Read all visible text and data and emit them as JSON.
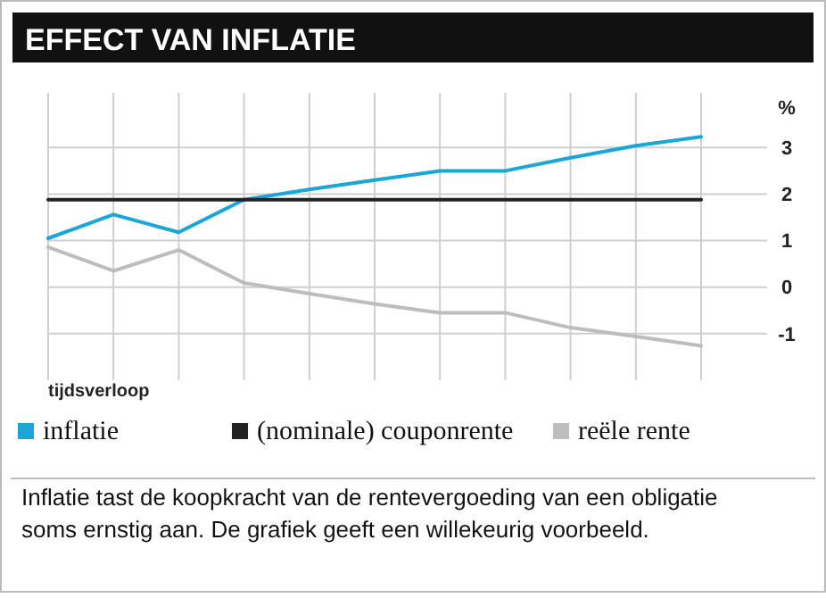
{
  "chart_data": {
    "type": "line",
    "title": "EFFECT VAN INFLATIE",
    "xlabel": "tijdsverloop",
    "ylabel": "%",
    "categories": [
      null,
      null,
      null,
      null,
      null,
      null,
      null,
      null,
      null,
      null,
      null
    ],
    "series": [
      {
        "name": "inflatie",
        "color": "#1aa7d8",
        "values": [
          1.05,
          1.56,
          1.18,
          1.88,
          2.1,
          2.3,
          2.5,
          2.5,
          2.78,
          3.04,
          3.23
        ]
      },
      {
        "name": "(nominale) couponrente",
        "color": "#222222",
        "values": [
          1.88,
          1.88,
          1.88,
          1.88,
          1.88,
          1.88,
          1.88,
          1.88,
          1.88,
          1.88,
          1.88
        ]
      },
      {
        "name": "reële rente",
        "color": "#bdbdbd",
        "values": [
          0.86,
          0.35,
          0.8,
          0.09,
          -0.14,
          -0.36,
          -0.55,
          -0.55,
          -0.87,
          -1.06,
          -1.26
        ]
      }
    ],
    "ylim": [
      -2,
      4.1
    ],
    "yticks": [
      -1,
      0,
      1,
      2,
      3
    ],
    "grid": true,
    "legend": "bottom",
    "marker": "none",
    "line_style": "solid",
    "annotations": [
      "Inflatie tast de koopkracht van de rentevergoeding van een obligatie soms ernstig aan. De grafiek geeft een willekeurig voorbeeld."
    ]
  }
}
